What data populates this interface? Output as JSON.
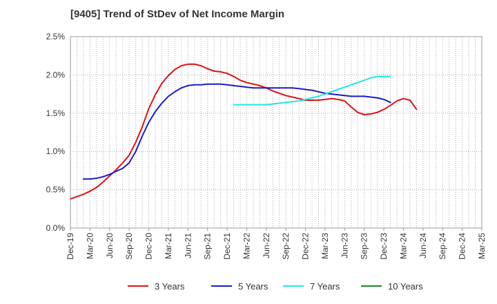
{
  "chart_data": {
    "type": "line",
    "title": "[9405]  Trend of StDev of Net Income Margin",
    "xlabel": "",
    "ylabel": "",
    "ylim": [
      0,
      2.5
    ],
    "y_ticks": [
      "0.0%",
      "0.5%",
      "1.0%",
      "1.5%",
      "2.0%",
      "2.5%"
    ],
    "x_ticks": [
      "Dec-19",
      "Mar-20",
      "Jun-20",
      "Sep-20",
      "Dec-20",
      "Mar-21",
      "Jun-21",
      "Sep-21",
      "Dec-21",
      "Mar-22",
      "Jun-22",
      "Sep-22",
      "Dec-22",
      "Mar-23",
      "Jun-23",
      "Sep-23",
      "Dec-23",
      "Mar-24",
      "Jun-24",
      "Sep-24",
      "Dec-24",
      "Mar-25"
    ],
    "grid": true,
    "legend_position": "bottom",
    "series": [
      {
        "name": "3 Years",
        "color": "#dd1111",
        "start_index": 0,
        "values": [
          0.38,
          0.41,
          0.44,
          0.48,
          0.53,
          0.6,
          0.68,
          0.76,
          0.85,
          0.95,
          1.12,
          1.32,
          1.56,
          1.74,
          1.89,
          1.99,
          2.07,
          2.12,
          2.14,
          2.14,
          2.12,
          2.08,
          2.05,
          2.04,
          2.02,
          1.98,
          1.93,
          1.9,
          1.88,
          1.86,
          1.83,
          1.79,
          1.76,
          1.73,
          1.71,
          1.69,
          1.67,
          1.67,
          1.67,
          1.68,
          1.69,
          1.68,
          1.66,
          1.58,
          1.51,
          1.48,
          1.49,
          1.51,
          1.55,
          1.6,
          1.66,
          1.69,
          1.67,
          1.55
        ]
      },
      {
        "name": "5 Years",
        "color": "#1a1acc",
        "start_index": 2,
        "values": [
          0.64,
          0.64,
          0.65,
          0.67,
          0.7,
          0.74,
          0.78,
          0.85,
          1.0,
          1.2,
          1.38,
          1.52,
          1.63,
          1.72,
          1.78,
          1.83,
          1.86,
          1.87,
          1.87,
          1.88,
          1.88,
          1.88,
          1.87,
          1.86,
          1.85,
          1.84,
          1.83,
          1.83,
          1.83,
          1.83,
          1.83,
          1.83,
          1.83,
          1.82,
          1.81,
          1.8,
          1.78,
          1.76,
          1.75,
          1.74,
          1.73,
          1.72,
          1.72,
          1.72,
          1.71,
          1.7,
          1.68,
          1.64
        ]
      },
      {
        "name": "7 Years",
        "color": "#22e5e5",
        "start_index": 25,
        "values": [
          1.61,
          1.61,
          1.61,
          1.61,
          1.61,
          1.61,
          1.62,
          1.63,
          1.64,
          1.65,
          1.66,
          1.68,
          1.7,
          1.72,
          1.75,
          1.78,
          1.81,
          1.84,
          1.87,
          1.9,
          1.93,
          1.96,
          1.98,
          1.98,
          1.98
        ]
      },
      {
        "name": "10 Years",
        "color": "#1a8a1a",
        "start_index": 0,
        "values": []
      }
    ]
  }
}
